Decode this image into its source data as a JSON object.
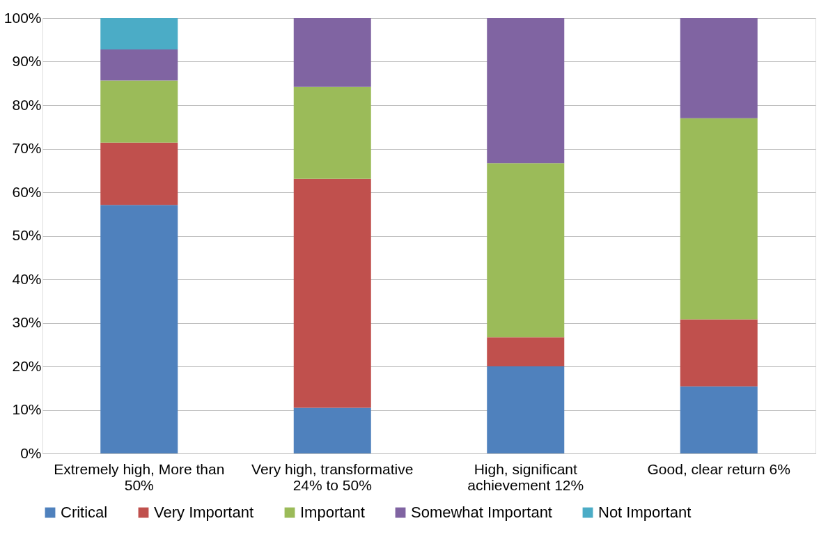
{
  "chart_data": {
    "type": "bar",
    "stacked": true,
    "categories": [
      "Extremely high, More than 50%",
      "Very high, transformative 24% to 50%",
      "High, significant achievement 12%",
      "Good, clear return 6%"
    ],
    "series": [
      {
        "name": "Critical",
        "color": "#4f81bd",
        "values": [
          57.1,
          10.5,
          20.0,
          15.4
        ]
      },
      {
        "name": "Very Important",
        "color": "#c0504d",
        "values": [
          14.3,
          52.6,
          6.7,
          15.4
        ]
      },
      {
        "name": "Important",
        "color": "#9bbb59",
        "values": [
          14.3,
          21.1,
          40.0,
          46.2
        ]
      },
      {
        "name": "Somewhat Important",
        "color": "#8064a2",
        "values": [
          7.1,
          15.8,
          33.3,
          23.0
        ]
      },
      {
        "name": "Not Important",
        "color": "#4bacc6",
        "values": [
          7.2,
          null,
          null,
          null
        ]
      }
    ],
    "ylim": [
      0,
      100
    ],
    "yticks": [
      {
        "value": 0,
        "label": "0%"
      },
      {
        "value": 10,
        "label": "10%"
      },
      {
        "value": 20,
        "label": "20%"
      },
      {
        "value": 30,
        "label": "30%"
      },
      {
        "value": 40,
        "label": "40%"
      },
      {
        "value": 50,
        "label": "50%"
      },
      {
        "value": 60,
        "label": "60%"
      },
      {
        "value": 70,
        "label": "70%"
      },
      {
        "value": 80,
        "label": "80%"
      },
      {
        "value": 90,
        "label": "90%"
      },
      {
        "value": 100,
        "label": "100%"
      }
    ],
    "grid": "y",
    "legend": "bottom"
  }
}
